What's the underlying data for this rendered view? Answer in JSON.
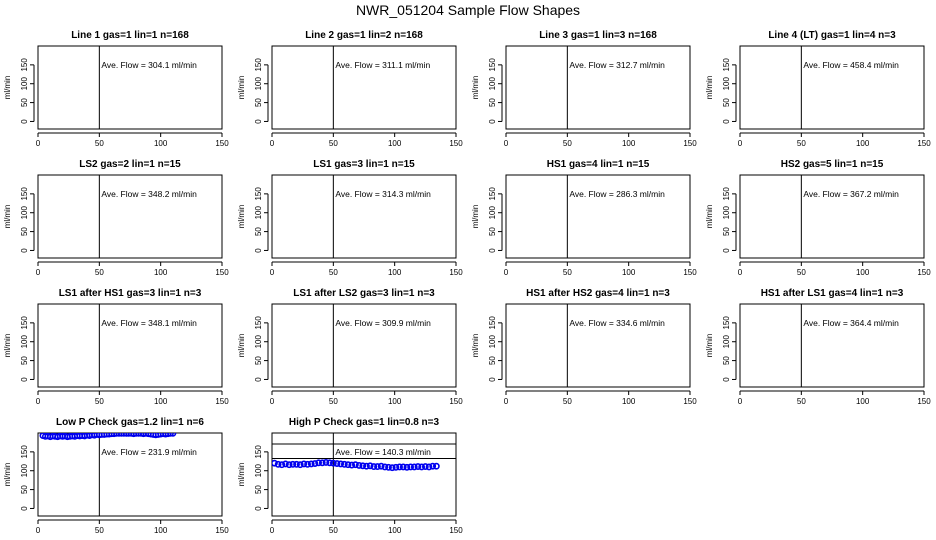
{
  "title": "NWR_051204  Sample Flow Shapes",
  "chart_data": [
    {
      "type": "scatter",
      "title": "Line 1 gas=1 lin=1 n=168",
      "ylabel": "ml/min",
      "xlim": [
        0,
        150
      ],
      "ylim": [
        -20,
        200
      ],
      "xticks": [
        0,
        50,
        100,
        150
      ],
      "yticks": [
        0,
        50,
        100,
        150
      ],
      "vline": 50,
      "annotation": "Ave. Flow =  304.1  ml/min",
      "points": []
    },
    {
      "type": "scatter",
      "title": "Line 2 gas=1 lin=2 n=168",
      "ylabel": "ml/min",
      "xlim": [
        0,
        150
      ],
      "ylim": [
        -20,
        200
      ],
      "xticks": [
        0,
        50,
        100,
        150
      ],
      "yticks": [
        0,
        50,
        100,
        150
      ],
      "vline": 50,
      "annotation": "Ave. Flow =  311.1  ml/min",
      "points": []
    },
    {
      "type": "scatter",
      "title": "Line 3 gas=1 lin=3 n=168",
      "ylabel": "ml/min",
      "xlim": [
        0,
        150
      ],
      "ylim": [
        -20,
        200
      ],
      "xticks": [
        0,
        50,
        100,
        150
      ],
      "yticks": [
        0,
        50,
        100,
        150
      ],
      "vline": 50,
      "annotation": "Ave. Flow =  312.7  ml/min",
      "points": []
    },
    {
      "type": "scatter",
      "title": "Line 4 (LT) gas=1 lin=4 n=3",
      "ylabel": "ml/min",
      "xlim": [
        0,
        150
      ],
      "ylim": [
        -20,
        200
      ],
      "xticks": [
        0,
        50,
        100,
        150
      ],
      "yticks": [
        0,
        50,
        100,
        150
      ],
      "vline": 50,
      "annotation": "Ave. Flow =  458.4  ml/min",
      "points": []
    },
    {
      "type": "scatter",
      "title": "LS2 gas=2 lin=1 n=15",
      "ylabel": "ml/min",
      "xlim": [
        0,
        150
      ],
      "ylim": [
        -20,
        200
      ],
      "xticks": [
        0,
        50,
        100,
        150
      ],
      "yticks": [
        0,
        50,
        100,
        150
      ],
      "vline": 50,
      "annotation": "Ave. Flow =  348.2  ml/min",
      "points": []
    },
    {
      "type": "scatter",
      "title": "LS1 gas=3 lin=1 n=15",
      "ylabel": "ml/min",
      "xlim": [
        0,
        150
      ],
      "ylim": [
        -20,
        200
      ],
      "xticks": [
        0,
        50,
        100,
        150
      ],
      "yticks": [
        0,
        50,
        100,
        150
      ],
      "vline": 50,
      "annotation": "Ave. Flow =  314.3  ml/min",
      "points": []
    },
    {
      "type": "scatter",
      "title": "HS1 gas=4 lin=1 n=15",
      "ylabel": "ml/min",
      "xlim": [
        0,
        150
      ],
      "ylim": [
        -20,
        200
      ],
      "xticks": [
        0,
        50,
        100,
        150
      ],
      "yticks": [
        0,
        50,
        100,
        150
      ],
      "vline": 50,
      "annotation": "Ave. Flow =  286.3  ml/min",
      "points": []
    },
    {
      "type": "scatter",
      "title": "HS2 gas=5 lin=1 n=15",
      "ylabel": "ml/min",
      "xlim": [
        0,
        150
      ],
      "ylim": [
        -20,
        200
      ],
      "xticks": [
        0,
        50,
        100,
        150
      ],
      "yticks": [
        0,
        50,
        100,
        150
      ],
      "vline": 50,
      "annotation": "Ave. Flow =  367.2  ml/min",
      "points": []
    },
    {
      "type": "scatter",
      "title": "LS1 after HS1 gas=3 lin=1 n=3",
      "ylabel": "ml/min",
      "xlim": [
        0,
        150
      ],
      "ylim": [
        -20,
        200
      ],
      "xticks": [
        0,
        50,
        100,
        150
      ],
      "yticks": [
        0,
        50,
        100,
        150
      ],
      "vline": 50,
      "annotation": "Ave. Flow =  348.1  ml/min",
      "points": []
    },
    {
      "type": "scatter",
      "title": "LS1 after LS2 gas=3 lin=1 n=3",
      "ylabel": "ml/min",
      "xlim": [
        0,
        150
      ],
      "ylim": [
        -20,
        200
      ],
      "xticks": [
        0,
        50,
        100,
        150
      ],
      "yticks": [
        0,
        50,
        100,
        150
      ],
      "vline": 50,
      "annotation": "Ave. Flow =  309.9  ml/min",
      "points": []
    },
    {
      "type": "scatter",
      "title": "HS1 after HS2 gas=4 lin=1 n=3",
      "ylabel": "ml/min",
      "xlim": [
        0,
        150
      ],
      "ylim": [
        -20,
        200
      ],
      "xticks": [
        0,
        50,
        100,
        150
      ],
      "yticks": [
        0,
        50,
        100,
        150
      ],
      "vline": 50,
      "annotation": "Ave. Flow =  334.6  ml/min",
      "points": []
    },
    {
      "type": "scatter",
      "title": "HS1 after LS1 gas=4 lin=1 n=3",
      "ylabel": "ml/min",
      "xlim": [
        0,
        150
      ],
      "ylim": [
        -20,
        200
      ],
      "xticks": [
        0,
        50,
        100,
        150
      ],
      "yticks": [
        0,
        50,
        100,
        150
      ],
      "vline": 50,
      "annotation": "Ave. Flow =  364.4  ml/min",
      "points": []
    },
    {
      "type": "scatter",
      "title": "Low P Check gas=1.2 lin=1 n=6",
      "ylabel": "ml/min",
      "xlim": [
        0,
        150
      ],
      "ylim": [
        -20,
        200
      ],
      "xticks": [
        0,
        50,
        100,
        150
      ],
      "yticks": [
        0,
        50,
        100,
        150
      ],
      "vline": 50,
      "annotation": "Ave. Flow =  231.9  ml/min",
      "color": "#0000ee",
      "points": [
        [
          4,
          193
        ],
        [
          6,
          191
        ],
        [
          8,
          192
        ],
        [
          10,
          190
        ],
        [
          12,
          192
        ],
        [
          14,
          191
        ],
        [
          16,
          190
        ],
        [
          18,
          192
        ],
        [
          20,
          191
        ],
        [
          22,
          192
        ],
        [
          24,
          190
        ],
        [
          26,
          191
        ],
        [
          28,
          192
        ],
        [
          30,
          191
        ],
        [
          32,
          193
        ],
        [
          34,
          192
        ],
        [
          36,
          193
        ],
        [
          38,
          192
        ],
        [
          40,
          194
        ],
        [
          42,
          193
        ],
        [
          44,
          195
        ],
        [
          46,
          194
        ],
        [
          48,
          196
        ],
        [
          50,
          195
        ],
        [
          52,
          196
        ],
        [
          54,
          196
        ],
        [
          56,
          197
        ],
        [
          58,
          197
        ],
        [
          60,
          198
        ],
        [
          62,
          198
        ],
        [
          64,
          199
        ],
        [
          66,
          199
        ],
        [
          68,
          199
        ],
        [
          70,
          199
        ],
        [
          72,
          199
        ],
        [
          74,
          199
        ],
        [
          76,
          199
        ],
        [
          78,
          198
        ],
        [
          80,
          199
        ],
        [
          82,
          199
        ],
        [
          84,
          199
        ],
        [
          86,
          198
        ],
        [
          88,
          199
        ],
        [
          90,
          198
        ],
        [
          92,
          197
        ],
        [
          94,
          196
        ],
        [
          96,
          195
        ],
        [
          98,
          196
        ],
        [
          100,
          197
        ],
        [
          102,
          198
        ],
        [
          104,
          197
        ],
        [
          106,
          198
        ],
        [
          108,
          199
        ],
        [
          110,
          199
        ]
      ]
    },
    {
      "type": "scatter",
      "title": "High P Check gas=1 lin=0.8 n=3",
      "ylabel": "ml/min",
      "xlim": [
        0,
        150
      ],
      "ylim": [
        -20,
        200
      ],
      "xticks": [
        0,
        50,
        100,
        150
      ],
      "yticks": [
        0,
        50,
        100,
        150
      ],
      "vline": 50,
      "hlines": [
        132.5,
        171
      ],
      "annotation": "Ave. Flow =  140.3  ml/min",
      "color": "#0000ee",
      "points": [
        [
          2,
          120
        ],
        [
          5,
          117
        ],
        [
          8,
          116
        ],
        [
          11,
          118
        ],
        [
          14,
          116
        ],
        [
          17,
          117
        ],
        [
          20,
          117
        ],
        [
          23,
          116
        ],
        [
          26,
          118
        ],
        [
          29,
          117
        ],
        [
          32,
          118
        ],
        [
          35,
          119
        ],
        [
          38,
          121
        ],
        [
          41,
          121
        ],
        [
          44,
          122
        ],
        [
          47,
          121
        ],
        [
          50,
          120
        ],
        [
          53,
          119
        ],
        [
          56,
          118
        ],
        [
          59,
          117
        ],
        [
          62,
          116
        ],
        [
          65,
          115
        ],
        [
          68,
          116
        ],
        [
          71,
          114
        ],
        [
          74,
          113
        ],
        [
          77,
          112
        ],
        [
          80,
          113
        ],
        [
          83,
          111
        ],
        [
          86,
          111
        ],
        [
          89,
          112
        ],
        [
          92,
          110
        ],
        [
          95,
          109
        ],
        [
          98,
          108
        ],
        [
          101,
          109
        ],
        [
          104,
          110
        ],
        [
          107,
          110
        ],
        [
          110,
          109
        ],
        [
          113,
          110
        ],
        [
          116,
          110
        ],
        [
          119,
          111
        ],
        [
          122,
          110
        ],
        [
          125,
          111
        ],
        [
          128,
          110
        ],
        [
          131,
          112
        ],
        [
          134,
          112
        ]
      ]
    }
  ]
}
